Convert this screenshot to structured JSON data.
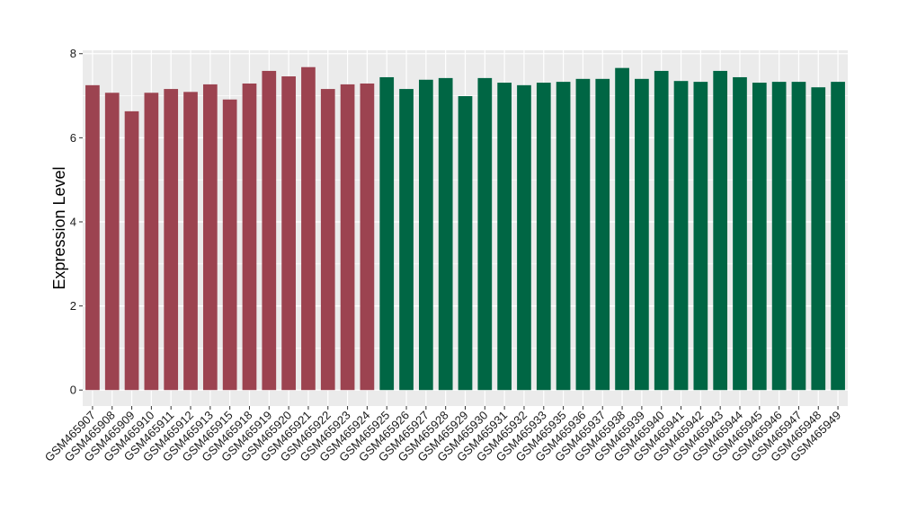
{
  "chart_data": {
    "type": "bar",
    "ylabel": "Expression Level",
    "ylim": [
      -0.38,
      8.08
    ],
    "yticks": [
      0,
      2,
      4,
      6,
      8
    ],
    "grid": true,
    "legend": "none",
    "colors": {
      "panel_background": "#ebebeb",
      "gridline": "#ffffff",
      "group_1": "#9c4350",
      "group_2": "#006644"
    },
    "categories": [
      "GSM465907",
      "GSM465908",
      "GSM465909",
      "GSM465910",
      "GSM465911",
      "GSM465912",
      "GSM465913",
      "GSM465915",
      "GSM465918",
      "GSM465919",
      "GSM465920",
      "GSM465921",
      "GSM465922",
      "GSM465923",
      "GSM465924",
      "GSM465925",
      "GSM465926",
      "GSM465927",
      "GSM465928",
      "GSM465929",
      "GSM465930",
      "GSM465931",
      "GSM465932",
      "GSM465933",
      "GSM465935",
      "GSM465936",
      "GSM465937",
      "GSM465938",
      "GSM465939",
      "GSM465940",
      "GSM465941",
      "GSM465942",
      "GSM465943",
      "GSM465944",
      "GSM465945",
      "GSM465946",
      "GSM465947",
      "GSM465948",
      "GSM465949"
    ],
    "values": [
      7.25,
      7.07,
      6.63,
      7.07,
      7.16,
      7.09,
      7.27,
      6.91,
      7.29,
      7.59,
      7.46,
      7.68,
      7.16,
      7.27,
      7.29,
      7.44,
      7.16,
      7.38,
      7.42,
      6.99,
      7.42,
      7.31,
      7.25,
      7.31,
      7.33,
      7.4,
      7.4,
      7.66,
      7.4,
      7.59,
      7.35,
      7.33,
      7.59,
      7.44,
      7.31,
      7.33,
      7.33,
      7.2,
      7.33
    ],
    "groups": [
      1,
      1,
      1,
      1,
      1,
      1,
      1,
      1,
      1,
      1,
      1,
      1,
      1,
      1,
      1,
      2,
      2,
      2,
      2,
      2,
      2,
      2,
      2,
      2,
      2,
      2,
      2,
      2,
      2,
      2,
      2,
      2,
      2,
      2,
      2,
      2,
      2,
      2,
      2
    ]
  }
}
